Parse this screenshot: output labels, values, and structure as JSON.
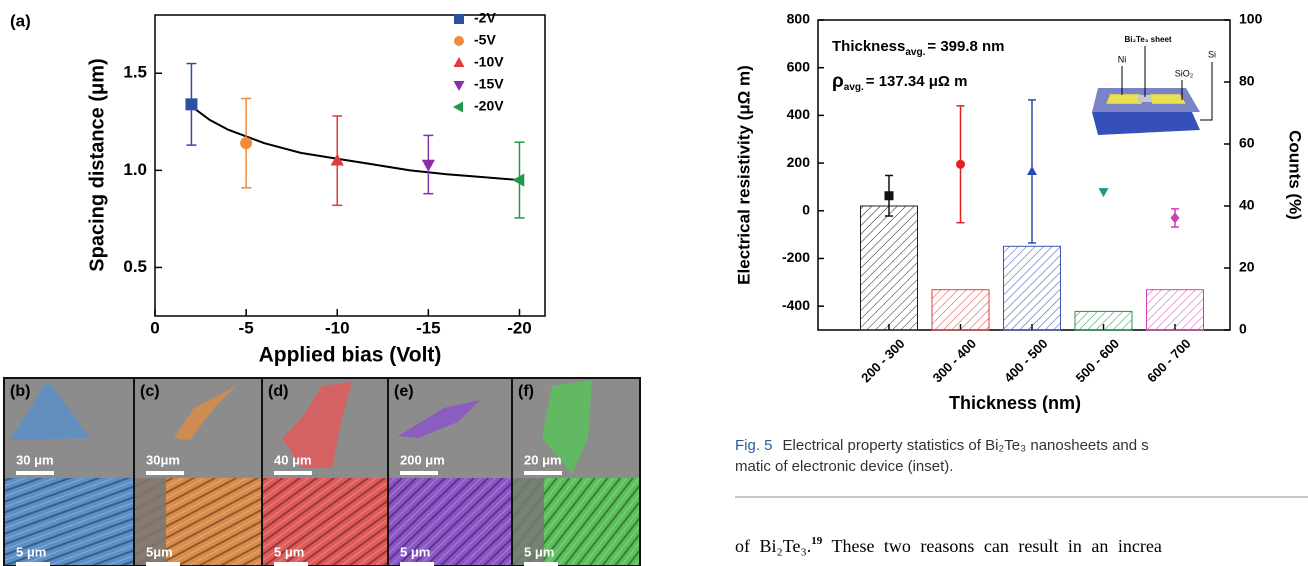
{
  "chart_data": [
    {
      "type": "scatter",
      "panel_label": "(a)",
      "xlabel": "Applied bias (Volt)",
      "ylabel": "Spacing distance (μm)",
      "xlim": [
        0,
        -21.4
      ],
      "xticks": [
        0,
        -5,
        -10,
        -15,
        -20
      ],
      "ylim": [
        0.25,
        1.8
      ],
      "yticks": [
        0.5,
        {
          "value": 1,
          "label": "1.0"
        },
        1.5
      ],
      "series": [
        {
          "name": "-2V",
          "color": "#2c4ea3",
          "marker": "square",
          "x": [
            -2
          ],
          "values": [
            1.34
          ],
          "errors": [
            0.21
          ]
        },
        {
          "name": "-5V",
          "color": "#f08a3c",
          "marker": "circle",
          "x": [
            -5
          ],
          "values": [
            1.14
          ],
          "errors": [
            0.23
          ]
        },
        {
          "name": "-10V",
          "color": "#e23b3b",
          "marker": "triangle-up",
          "x": [
            -10
          ],
          "values": [
            1.05
          ],
          "errors": [
            0.23
          ]
        },
        {
          "name": "-15V",
          "color": "#8a2fa8",
          "marker": "triangle-down",
          "x": [
            -15
          ],
          "values": [
            1.03
          ],
          "errors": [
            0.15
          ]
        },
        {
          "name": "-20V",
          "color": "#1f9a4a",
          "marker": "triangle-left",
          "x": [
            -20
          ],
          "values": [
            0.95
          ],
          "errors": [
            0.195
          ]
        }
      ],
      "fit": {
        "color": "#000000",
        "x": [
          -2,
          -3,
          -4,
          -6,
          -8,
          -10,
          -12,
          -14,
          -16,
          -18,
          -20
        ],
        "values": [
          1.33,
          1.26,
          1.21,
          1.14,
          1.09,
          1.06,
          1.03,
          1.0,
          0.98,
          0.965,
          0.95
        ]
      }
    },
    {
      "type": "bar",
      "xlabel": "Thickness (nm)",
      "ylabel": "Electrical resistivity (μΩ m)",
      "y2label": "Counts (%)",
      "categories": [
        "200 - 300",
        "300 - 400",
        "400 - 500",
        "500 - 600",
        "600 - 700"
      ],
      "ylim": [
        -500,
        800
      ],
      "yticks": [
        -400,
        -200,
        0,
        200,
        400,
        600,
        800
      ],
      "y2lim": [
        0,
        100
      ],
      "y2ticks": [
        0,
        20,
        40,
        60,
        80,
        100
      ],
      "bars": {
        "axis": "y2",
        "values": [
          40,
          13,
          27,
          6,
          13
        ],
        "colors": [
          "#222222",
          "#e23b3b",
          "#3b56b0",
          "#1f9a4a",
          "#d040b0"
        ]
      },
      "points": {
        "values": [
          63,
          195,
          165,
          80,
          -30
        ],
        "errors": [
          85,
          245,
          300,
          null,
          38
        ],
        "colors": [
          "#111111",
          "#e02020",
          "#2a4ab0",
          "#149a8a",
          "#d040b0"
        ],
        "markers": [
          "square",
          "circle",
          "triangle-up",
          "triangle-down",
          "diamond"
        ]
      },
      "annotations": [
        {
          "text": "Thickness",
          "sub": "avg.",
          "rest": "= 399.8 nm"
        },
        {
          "text": "ρ",
          "sub": "avg.",
          "rest": "= 137.34 μΩ m"
        }
      ],
      "inset_labels": [
        "Bi₂Te₃ sheet",
        "Ni",
        "SiO₂",
        "Si"
      ]
    }
  ],
  "panels": [
    {
      "label": "(b)",
      "scale_top": "30 μm",
      "scale_bottom": "5 μm",
      "color": "#5b8fc7"
    },
    {
      "label": "(c)",
      "scale_top": "30μm",
      "scale_bottom": "5μm",
      "color": "#d98c4a"
    },
    {
      "label": "(d)",
      "scale_top": "40 μm",
      "scale_bottom": "5 μm",
      "color": "#e05a5a"
    },
    {
      "label": "(e)",
      "scale_top": "200 μm",
      "scale_bottom": "5 μm",
      "color": "#8b55c8"
    },
    {
      "label": "(f)",
      "scale_top": "20 μm",
      "scale_bottom": "5 μm",
      "color": "#5cbf5c"
    }
  ],
  "caption": {
    "label": "Fig. 5",
    "line1": "Electrical property statistics of Bi₂Te₃ nanosheets and s",
    "line2": "matic of electronic device (inset)."
  },
  "body": {
    "start": "of Bi₂Te₃.",
    "ref": "19",
    "rest": " These two reasons can result in an increa"
  }
}
